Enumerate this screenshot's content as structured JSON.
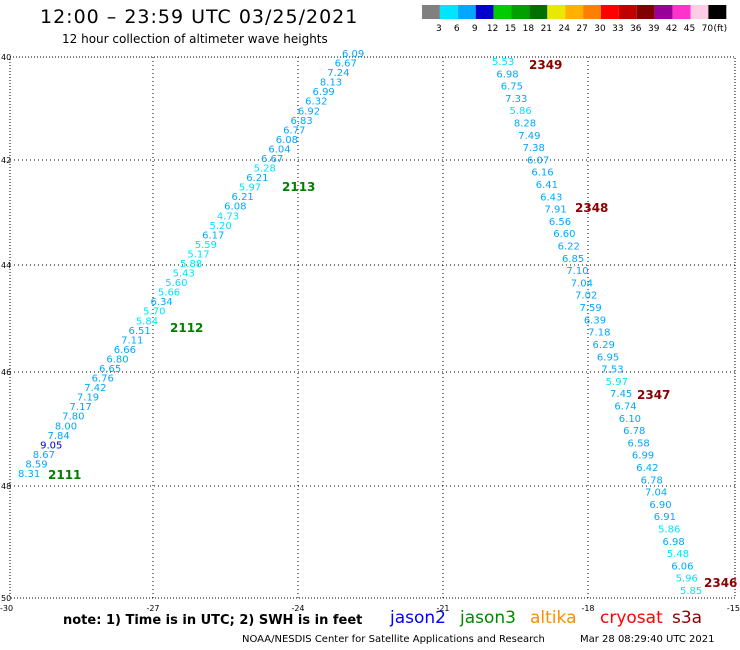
{
  "header": {
    "title": "12:00 – 23:59 UTC 03/25/2021",
    "subtitle": "12 hour collection of altimeter wave heights"
  },
  "legend": {
    "unit": "(ft)",
    "bins": [
      {
        "label": "3",
        "color": "#808080"
      },
      {
        "label": "6",
        "color": "#00e5ff"
      },
      {
        "label": "9",
        "color": "#00a8ff"
      },
      {
        "label": "12",
        "color": "#0000cd"
      },
      {
        "label": "15",
        "color": "#00cc00"
      },
      {
        "label": "18",
        "color": "#00a000"
      },
      {
        "label": "21",
        "color": "#007000"
      },
      {
        "label": "24",
        "color": "#e8e800"
      },
      {
        "label": "27",
        "color": "#ffb000"
      },
      {
        "label": "30",
        "color": "#ff7f00"
      },
      {
        "label": "33",
        "color": "#ff0000"
      },
      {
        "label": "36",
        "color": "#c00000"
      },
      {
        "label": "39",
        "color": "#800000"
      },
      {
        "label": "42",
        "color": "#990099"
      },
      {
        "label": "45",
        "color": "#ff33cc"
      },
      {
        "label": "70",
        "color": "#ffcce6"
      },
      {
        "label": "",
        "color": "#000000"
      }
    ]
  },
  "axes": {
    "x_ticks": [
      "-30",
      "-27",
      "-24",
      "-21",
      "-18",
      "-15"
    ],
    "y_ticks": [
      "40",
      "42",
      "44",
      "46",
      "48",
      "50"
    ]
  },
  "tracks": [
    {
      "name": "west",
      "start": [
        342,
        57
      ],
      "end": [
        18,
        477
      ],
      "values": [
        "6.09",
        "6.67",
        "7.24",
        "8.13",
        "6.99",
        "6.32",
        "6.92",
        "6.83",
        "6.77",
        "6.08",
        "6.04",
        "6.67",
        "5.28",
        "6.21",
        "5.97",
        "6.21",
        "6.08",
        "4.73",
        "5.20",
        "6.17",
        "5.59",
        "5.17",
        "5.88",
        "5.43",
        "5.60",
        "5.66",
        "6.34",
        "5.70",
        "5.84",
        "6.51",
        "7.11",
        "6.66",
        "6.80",
        "6.65",
        "6.76",
        "7.42",
        "7.19",
        "7.17",
        "7.80",
        "8.00",
        "7.84",
        "9.05",
        "8.67",
        "8.59",
        "8.31"
      ],
      "colors": [
        "#00a8ff",
        "#00a8ff",
        "#00a8ff",
        "#00a8ff",
        "#00a8ff",
        "#00a8ff",
        "#00a8ff",
        "#00a8ff",
        "#00a8ff",
        "#00a8ff",
        "#00a8ff",
        "#00a8ff",
        "#00e5ff",
        "#00a8ff",
        "#00e5ff",
        "#00a8ff",
        "#00a8ff",
        "#00e5ff",
        "#00e5ff",
        "#00a8ff",
        "#00e5ff",
        "#00e5ff",
        "#00e5ff",
        "#00e5ff",
        "#00e5ff",
        "#00e5ff",
        "#00a8ff",
        "#00e5ff",
        "#00e5ff",
        "#00a8ff",
        "#00a8ff",
        "#00a8ff",
        "#00a8ff",
        "#00a8ff",
        "#00a8ff",
        "#00a8ff",
        "#00a8ff",
        "#00a8ff",
        "#00a8ff",
        "#00a8ff",
        "#00a8ff",
        "#0000cd",
        "#00a8ff",
        "#00a8ff",
        "#00a8ff"
      ]
    },
    {
      "name": "east",
      "start": [
        492,
        65
      ],
      "end": [
        680,
        594
      ],
      "values": [
        "5.53",
        "6.98",
        "6.75",
        "7.33",
        "5.86",
        "8.28",
        "7.49",
        "7.38",
        "6.07",
        "6.16",
        "6.41",
        "6.43",
        "7.91",
        "6.56",
        "6.60",
        "6.22",
        "6.85",
        "7.10",
        "7.04",
        "7.02",
        "7.59",
        "6.39",
        "7.18",
        "6.29",
        "6.95",
        "7.53",
        "5.97",
        "7.45",
        "6.74",
        "6.10",
        "6.78",
        "6.58",
        "6.99",
        "6.42",
        "6.78",
        "7.04",
        "6.90",
        "6.91",
        "5.86",
        "6.98",
        "5.48",
        "6.06",
        "5.96",
        "5.85"
      ],
      "colors": [
        "#00e5ff",
        "#00a8ff",
        "#00a8ff",
        "#00a8ff",
        "#00e5ff",
        "#00a8ff",
        "#00a8ff",
        "#00a8ff",
        "#00a8ff",
        "#00a8ff",
        "#00a8ff",
        "#00a8ff",
        "#00a8ff",
        "#00a8ff",
        "#00a8ff",
        "#00a8ff",
        "#00a8ff",
        "#00a8ff",
        "#00a8ff",
        "#00a8ff",
        "#00a8ff",
        "#00a8ff",
        "#00a8ff",
        "#00a8ff",
        "#00a8ff",
        "#00a8ff",
        "#00e5ff",
        "#00a8ff",
        "#00a8ff",
        "#00a8ff",
        "#00a8ff",
        "#00a8ff",
        "#00a8ff",
        "#00a8ff",
        "#00a8ff",
        "#00a8ff",
        "#00a8ff",
        "#00a8ff",
        "#00e5ff",
        "#00a8ff",
        "#00e5ff",
        "#00a8ff",
        "#00e5ff",
        "#00e5ff"
      ]
    }
  ],
  "time_labels": [
    {
      "text": "2349",
      "color": "#8b0000"
    },
    {
      "text": "2348",
      "color": "#8b0000"
    },
    {
      "text": "2347",
      "color": "#8b0000"
    },
    {
      "text": "2346",
      "color": "#8b0000"
    },
    {
      "text": "2113",
      "color": "#008000"
    },
    {
      "text": "2112",
      "color": "#008000"
    },
    {
      "text": "2111",
      "color": "#008000"
    }
  ],
  "footer": {
    "note": "note: 1) Time is in UTC; 2) SWH is in feet",
    "satellites": [
      {
        "name": "jason2",
        "color": "#0000ff"
      },
      {
        "name": "jason3",
        "color": "#008800"
      },
      {
        "name": "altika",
        "color": "#ff8c00"
      },
      {
        "name": "cryosat",
        "color": "#ff0000"
      },
      {
        "name": "s3a",
        "color": "#8b0000"
      }
    ],
    "credit": "NOAA/NESDIS Center for Satellite Applications and Research",
    "timestamp": "Mar 28 08:29:40 UTC 2021"
  }
}
